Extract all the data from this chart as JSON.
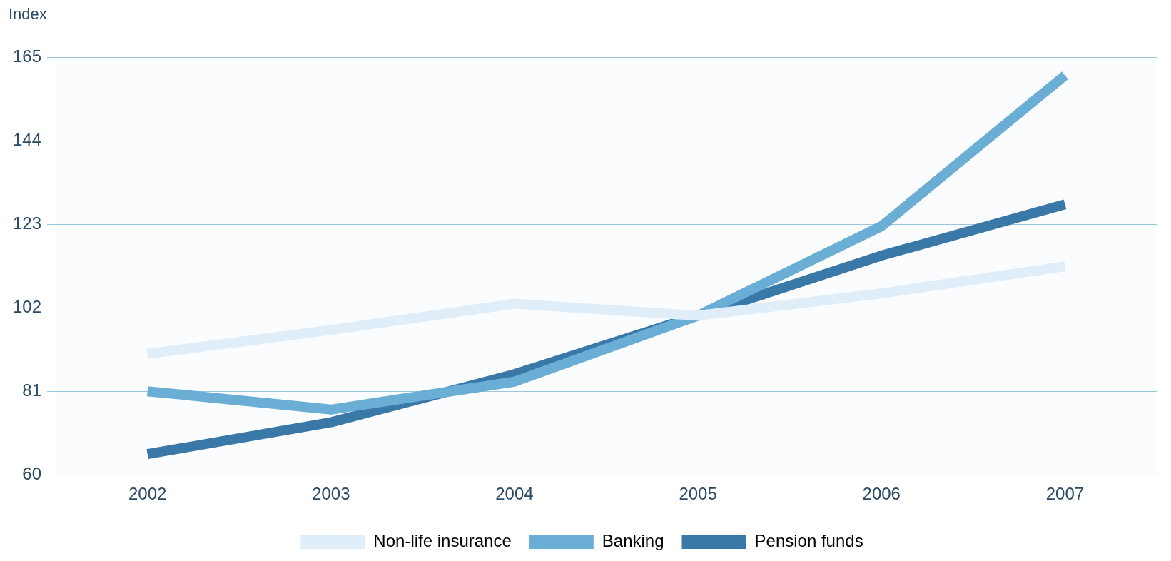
{
  "chart_data": {
    "type": "line",
    "ylabel": "Index",
    "categories": [
      "2002",
      "2003",
      "2004",
      "2005",
      "2006",
      "2007"
    ],
    "series": [
      {
        "name": "Non-life insurance",
        "color": "#dfeef9",
        "values": [
          90.4,
          96.4,
          103,
          100,
          105.6,
          112.4
        ]
      },
      {
        "name": "Banking",
        "color": "#6aaed6",
        "values": [
          81,
          76.4,
          83.4,
          100,
          122.5,
          160.4
        ]
      },
      {
        "name": "Pension funds",
        "color": "#3a78a8",
        "values": [
          65.2,
          73.2,
          85.3,
          100,
          115.1,
          128
        ]
      }
    ],
    "ylim": [
      60,
      165
    ],
    "yticks": [
      60,
      81,
      102,
      123,
      144,
      165
    ],
    "grid": "y",
    "legend": "bottom",
    "marker": "none",
    "line_style": "solid"
  }
}
